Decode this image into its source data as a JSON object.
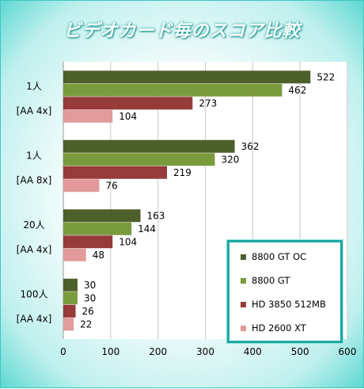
{
  "chart_data": {
    "type": "bar",
    "orientation": "horizontal",
    "title": "ビデオカード毎のスコア比較",
    "categories": [
      [
        "1人",
        "[AA 4x]"
      ],
      [
        "1人",
        "[AA 8x]"
      ],
      [
        "20人",
        "[AA 4x]"
      ],
      [
        "100人",
        "[AA 4x]"
      ]
    ],
    "series": [
      {
        "name": "8800 GT OC",
        "color": "#4d5f2b",
        "values": [
          522,
          362,
          163,
          30
        ]
      },
      {
        "name": "8800 GT",
        "color": "#7a9a3e",
        "values": [
          462,
          320,
          144,
          30
        ]
      },
      {
        "name": "HD 3850 512MB",
        "color": "#963a3a",
        "values": [
          273,
          219,
          104,
          26
        ]
      },
      {
        "name": "HD 2600 XT",
        "color": "#e29a9a",
        "values": [
          104,
          76,
          48,
          22
        ]
      }
    ],
    "xlim": [
      0,
      600
    ],
    "xticks": [
      0,
      100,
      200,
      300,
      400,
      500,
      600
    ],
    "grid": true,
    "legend_position": "bottom-right"
  }
}
